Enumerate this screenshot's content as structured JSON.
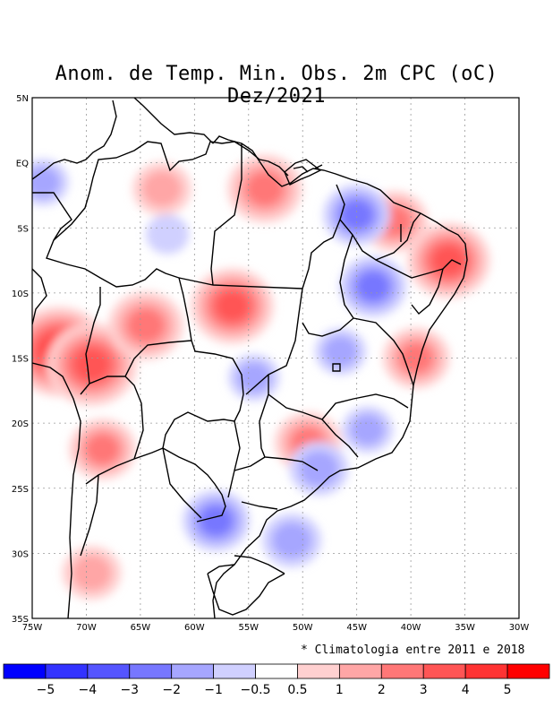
{
  "title": "Anom. de Temp. Min. Obs. 2m CPC (oC) Dez/2021",
  "footnote": "* Climatologia entre 2011 e 2018",
  "axes": {
    "lon_labels": [
      "75W",
      "70W",
      "65W",
      "60W",
      "55W",
      "50W",
      "45W",
      "40W",
      "35W",
      "30W"
    ],
    "lat_labels": [
      "5N",
      "EQ",
      "5S",
      "10S",
      "15S",
      "20S",
      "25S",
      "30S",
      "35S"
    ],
    "lon_range": [
      -75,
      -30
    ],
    "lat_range": [
      -35,
      5
    ]
  },
  "colorbar": {
    "colors": [
      "#0000ff",
      "#3333ff",
      "#5555ff",
      "#7777ff",
      "#a6a6ff",
      "#d0d0ff",
      "#ffffff",
      "#ffd0d0",
      "#ffa6a6",
      "#ff7777",
      "#ff5555",
      "#ff3333",
      "#ff0000"
    ],
    "labels": [
      "−5",
      "−4",
      "−3",
      "−2",
      "−1",
      "−0.5",
      "0.5",
      "1",
      "2",
      "3",
      "4",
      "5"
    ]
  },
  "chart_data": {
    "type": "heatmap",
    "title": "Anom. de Temp. Min. Obs. 2m CPC (oC) Dez/2021",
    "variable": "Minimum temperature anomaly at 2m (oC)",
    "region": "Brazil / South America",
    "period": "Dez/2021",
    "levels": [
      -5,
      -4,
      -3,
      -2,
      -1,
      -0.5,
      0.5,
      1,
      2,
      3,
      4,
      5
    ],
    "anomaly_features": [
      {
        "lon": -72.5,
        "lat": -14.5,
        "value": 4
      },
      {
        "lon": -69.5,
        "lat": -15.5,
        "value": 3.5
      },
      {
        "lon": -64.5,
        "lat": -12.5,
        "value": 2.5
      },
      {
        "lon": -56.5,
        "lat": -11.0,
        "value": 3
      },
      {
        "lon": -53.5,
        "lat": -2.0,
        "value": 2.5
      },
      {
        "lon": -36.5,
        "lat": -7.5,
        "value": 3
      },
      {
        "lon": -41.5,
        "lat": -4.5,
        "value": 2
      },
      {
        "lon": -39.5,
        "lat": -15.0,
        "value": 2
      },
      {
        "lon": -68.5,
        "lat": -22.0,
        "value": 2
      },
      {
        "lon": -49.5,
        "lat": -21.5,
        "value": 2
      },
      {
        "lon": -63.0,
        "lat": -2.0,
        "value": 1.5
      },
      {
        "lon": -69.5,
        "lat": -31.5,
        "value": 1.5
      },
      {
        "lon": -43.5,
        "lat": -9.5,
        "value": -2
      },
      {
        "lon": -45.0,
        "lat": -4.0,
        "value": -2
      },
      {
        "lon": -58.0,
        "lat": -27.5,
        "value": -2
      },
      {
        "lon": -51.0,
        "lat": -29.0,
        "value": -1.5
      },
      {
        "lon": -48.5,
        "lat": -23.5,
        "value": -1.5
      },
      {
        "lon": -54.5,
        "lat": -16.5,
        "value": -1
      },
      {
        "lon": -46.5,
        "lat": -14.5,
        "value": -1
      },
      {
        "lon": -62.5,
        "lat": -5.5,
        "value": -0.5
      },
      {
        "lon": -44.0,
        "lat": -20.5,
        "value": -1
      },
      {
        "lon": -74.0,
        "lat": -1.5,
        "value": -1
      }
    ]
  }
}
